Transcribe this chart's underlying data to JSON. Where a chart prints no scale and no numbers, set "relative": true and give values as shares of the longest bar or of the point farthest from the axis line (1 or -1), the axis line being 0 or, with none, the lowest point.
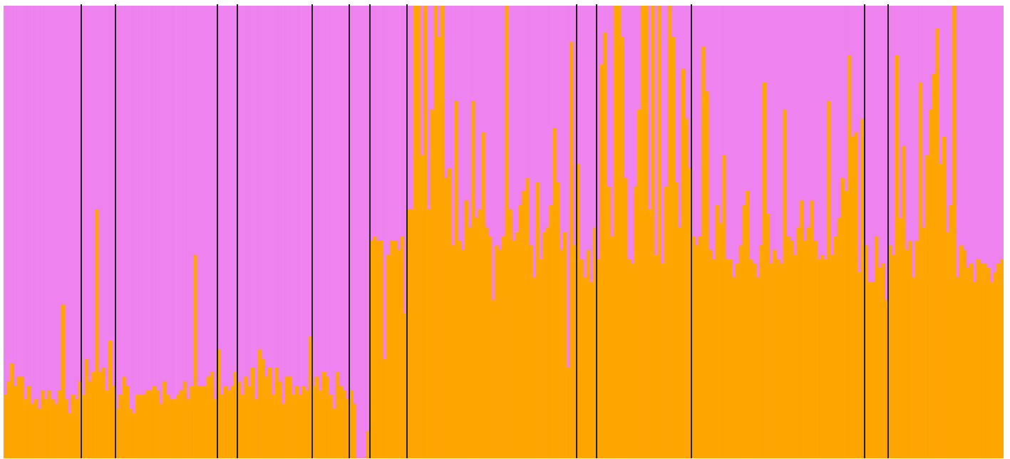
{
  "chart_data": {
    "type": "bar",
    "stacked": true,
    "relative": true,
    "categories": [
      null,
      null,
      null,
      null,
      null,
      null,
      null,
      null,
      null,
      null,
      null,
      null,
      null,
      null,
      null,
      null,
      null,
      null,
      null,
      null,
      null,
      null,
      null,
      null,
      null,
      null,
      null,
      null,
      null,
      null,
      null,
      null,
      null,
      null,
      null,
      null,
      null,
      null,
      null,
      null,
      null,
      null,
      null,
      null,
      null,
      null,
      null,
      null,
      null,
      null,
      null,
      null,
      null,
      null,
      null,
      null,
      null,
      null,
      null,
      null,
      null,
      null,
      null,
      null,
      null,
      null,
      null,
      null,
      null,
      null,
      null,
      null,
      null,
      null,
      null,
      null,
      null,
      null,
      null,
      null,
      null,
      null,
      null,
      null,
      null,
      null,
      null,
      null,
      null,
      null,
      null,
      null,
      null,
      null,
      null,
      null,
      null,
      null,
      null,
      null,
      null,
      null,
      null,
      null,
      null,
      null,
      null,
      null,
      null,
      null,
      null,
      null,
      null,
      null,
      null,
      null,
      null,
      null,
      null,
      null,
      null,
      null,
      null,
      null,
      null,
      null,
      null,
      null,
      null,
      null,
      null,
      null,
      null,
      null,
      null,
      null,
      null,
      null,
      null,
      null,
      null,
      null,
      null,
      null,
      null,
      null,
      null,
      null,
      null,
      null,
      null,
      null,
      null,
      null,
      null,
      null,
      null,
      null,
      null,
      null,
      null,
      null,
      null,
      null,
      null,
      null,
      null,
      null,
      null,
      null,
      null,
      null,
      null,
      null,
      null,
      null,
      null,
      null,
      null,
      null,
      null,
      null,
      null,
      null,
      null,
      null,
      null,
      null,
      null,
      null,
      null,
      null,
      null,
      null,
      null,
      null,
      null,
      null,
      null,
      null,
      null,
      null,
      null,
      null,
      null,
      null,
      null,
      null,
      null,
      null,
      null,
      null,
      null,
      null,
      null,
      null,
      null,
      null,
      null,
      null,
      null,
      null,
      null,
      null,
      null,
      null,
      null,
      null,
      null,
      null,
      null,
      null,
      null,
      null,
      null,
      null,
      null,
      null,
      null,
      null,
      null,
      null,
      null,
      null,
      null,
      null,
      null,
      null,
      null,
      null,
      null,
      null,
      null,
      null,
      null,
      null,
      null,
      null,
      null,
      null,
      null,
      null,
      null,
      null,
      null,
      null,
      null,
      null,
      null,
      null,
      null,
      null,
      null,
      null,
      null,
      null,
      null,
      null,
      null,
      null,
      null,
      null,
      null,
      null,
      null,
      null,
      null,
      null,
      null,
      null,
      null,
      null,
      null,
      null,
      null
    ],
    "series": [
      {
        "color": "#ffa500",
        "values": [
          0.14,
          0.17,
          0.21,
          0.16,
          0.18,
          0.18,
          0.13,
          0.16,
          0.12,
          0.13,
          0.11,
          0.15,
          0.13,
          0.15,
          0.13,
          0.12,
          0.15,
          0.34,
          0.13,
          0.1,
          0.14,
          0.13,
          0.17,
          0.14,
          0.22,
          0.17,
          0.19,
          0.55,
          0.19,
          0.2,
          0.15,
          0.26,
          0.16,
          0.11,
          0.14,
          0.18,
          0.16,
          0.11,
          0.1,
          0.14,
          0.14,
          0.14,
          0.15,
          0.15,
          0.16,
          0.15,
          0.12,
          0.17,
          0.14,
          0.13,
          0.13,
          0.14,
          0.15,
          0.17,
          0.13,
          0.16,
          0.45,
          0.16,
          0.16,
          0.16,
          0.18,
          0.19,
          0.13,
          0.24,
          0.14,
          0.16,
          0.15,
          0.16,
          0.19,
          0.17,
          0.14,
          0.18,
          0.16,
          0.2,
          0.13,
          0.24,
          0.22,
          0.18,
          0.2,
          0.14,
          0.2,
          0.17,
          0.12,
          0.18,
          0.18,
          0.14,
          0.16,
          0.14,
          0.16,
          0.15,
          0.27,
          0.16,
          0.18,
          0.15,
          0.19,
          0.18,
          0.14,
          0.11,
          0.19,
          0.16,
          0.15,
          0.13,
          0.15,
          0.12,
          0,
          0,
          0,
          0.06,
          0.48,
          0.49,
          0.48,
          0.48,
          0.22,
          0.45,
          0.48,
          0.48,
          0.46,
          0.49,
          0.32,
          0.55,
          0.55,
          1,
          1,
          0.67,
          1,
          0.55,
          0.77,
          1,
          0.93,
          1,
          0.62,
          0.64,
          0.47,
          0.79,
          0.48,
          0.46,
          0.57,
          0.51,
          0.79,
          0.53,
          0.55,
          0.72,
          0.51,
          0.49,
          0.35,
          0.47,
          0.46,
          0.49,
          1,
          0.55,
          0.48,
          0.5,
          0.56,
          0.59,
          0.62,
          0.47,
          0.4,
          0.61,
          0.44,
          0.5,
          0.51,
          0.56,
          0.73,
          0.61,
          0.46,
          0.5,
          0.2,
          0.92,
          0.47,
          0.65,
          0.44,
          0.4,
          0.46,
          0.39,
          0.51,
          0.44,
          0.87,
          0.94,
          0.6,
          0.49,
          1,
          1,
          0.93,
          0.62,
          0.44,
          0.43,
          0.6,
          0.77,
          1,
          1,
          0.55,
          1,
          0.45,
          1,
          0.43,
          0.6,
          1,
          0.93,
          0.61,
          0.51,
          0.86,
          0.75,
          0.64,
          0.49,
          0.47,
          0.49,
          0.91,
          0.81,
          0.46,
          0.44,
          0.56,
          0.52,
          0.67,
          0.44,
          0.44,
          0.4,
          0.43,
          0.47,
          0.56,
          0.59,
          0.44,
          0.43,
          0.4,
          0.47,
          0.83,
          0.54,
          0.43,
          0.46,
          0.44,
          0.43,
          0.77,
          0.49,
          0.48,
          0.45,
          0.51,
          0.57,
          0.48,
          0.51,
          0.57,
          0.48,
          0.44,
          0.45,
          0.44,
          0.79,
          0.45,
          0.49,
          0.53,
          0.62,
          0.59,
          0.89,
          0.71,
          0.72,
          0.41,
          0.75,
          0.47,
          0.39,
          0.39,
          0.49,
          0.42,
          0.43,
          0.35,
          0.47,
          0.45,
          0.89,
          0.53,
          0.69,
          0.46,
          0.48,
          0.4,
          0.48,
          0.83,
          0.51,
          0.67,
          0.77,
          0.85,
          0.95,
          0.65,
          0.71,
          0.5,
          0.56,
          1,
          0.4,
          0.47,
          0.46,
          0.42,
          0.43,
          0.39,
          0.44,
          0.43,
          0.43,
          0.42,
          0.39,
          0.41,
          0.43,
          0.44
        ]
      },
      {
        "color": "#ee82ee",
        "values": [
          0.86,
          0.83,
          0.79,
          0.84,
          0.82,
          0.82,
          0.87,
          0.84,
          0.88,
          0.87,
          0.89,
          0.85,
          0.87,
          0.85,
          0.87,
          0.88,
          0.85,
          0.66,
          0.87,
          0.9,
          0.86,
          0.87,
          0.83,
          0.86,
          0.78,
          0.83,
          0.81,
          0.45,
          0.81,
          0.8,
          0.85,
          0.74,
          0.84,
          0.89,
          0.86,
          0.82,
          0.84,
          0.89,
          0.9,
          0.86,
          0.86,
          0.86,
          0.85,
          0.85,
          0.84,
          0.85,
          0.88,
          0.83,
          0.86,
          0.87,
          0.87,
          0.86,
          0.85,
          0.83,
          0.87,
          0.84,
          0.55,
          0.84,
          0.84,
          0.84,
          0.82,
          0.81,
          0.87,
          0.76,
          0.86,
          0.84,
          0.85,
          0.84,
          0.81,
          0.83,
          0.86,
          0.82,
          0.84,
          0.8,
          0.87,
          0.76,
          0.78,
          0.82,
          0.8,
          0.86,
          0.8,
          0.83,
          0.88,
          0.82,
          0.82,
          0.86,
          0.84,
          0.86,
          0.84,
          0.85,
          0.73,
          0.84,
          0.82,
          0.85,
          0.81,
          0.82,
          0.86,
          0.89,
          0.81,
          0.84,
          0.85,
          0.87,
          0.85,
          0.88,
          1,
          1,
          1,
          0.94,
          0.52,
          0.51,
          0.52,
          0.52,
          0.78,
          0.55,
          0.52,
          0.52,
          0.54,
          0.51,
          0.68,
          0.45,
          0.45,
          0,
          0,
          0.33,
          0,
          0.45,
          0.23,
          0,
          0.07,
          0,
          0.38,
          0.36,
          0.53,
          0.21,
          0.52,
          0.54,
          0.43,
          0.49,
          0.21,
          0.47,
          0.45,
          0.28,
          0.49,
          0.51,
          0.65,
          0.53,
          0.54,
          0.51,
          0,
          0.45,
          0.52,
          0.5,
          0.44,
          0.41,
          0.38,
          0.53,
          0.6,
          0.39,
          0.56,
          0.5,
          0.49,
          0.44,
          0.27,
          0.39,
          0.54,
          0.5,
          0.8,
          0.08,
          0.53,
          0.35,
          0.56,
          0.6,
          0.54,
          0.61,
          0.49,
          0.56,
          0.13,
          0.06,
          0.4,
          0.51,
          0,
          0,
          0.07,
          0.38,
          0.56,
          0.57,
          0.4,
          0.23,
          0,
          0,
          0.45,
          0,
          0.55,
          0,
          0.57,
          0.4,
          0,
          0.07,
          0.39,
          0.49,
          0.14,
          0.25,
          0.36,
          0.51,
          0.53,
          0.51,
          0.09,
          0.19,
          0.54,
          0.56,
          0.44,
          0.48,
          0.33,
          0.56,
          0.56,
          0.6,
          0.57,
          0.53,
          0.44,
          0.41,
          0.56,
          0.57,
          0.6,
          0.53,
          0.17,
          0.46,
          0.57,
          0.54,
          0.56,
          0.57,
          0.23,
          0.51,
          0.52,
          0.55,
          0.49,
          0.43,
          0.52,
          0.49,
          0.43,
          0.52,
          0.56,
          0.55,
          0.56,
          0.21,
          0.55,
          0.51,
          0.47,
          0.38,
          0.41,
          0.11,
          0.29,
          0.28,
          0.59,
          0.25,
          0.53,
          0.61,
          0.61,
          0.51,
          0.58,
          0.57,
          0.65,
          0.53,
          0.55,
          0.11,
          0.47,
          0.31,
          0.54,
          0.52,
          0.6,
          0.52,
          0.17,
          0.49,
          0.33,
          0.23,
          0.15,
          0.05,
          0.35,
          0.29,
          0.5,
          0.44,
          0,
          0.6,
          0.53,
          0.54,
          0.58,
          0.57,
          0.61,
          0.56,
          0.57,
          0.57,
          0.58,
          0.61,
          0.59,
          0.57,
          0.56
        ]
      }
    ]
  }
}
